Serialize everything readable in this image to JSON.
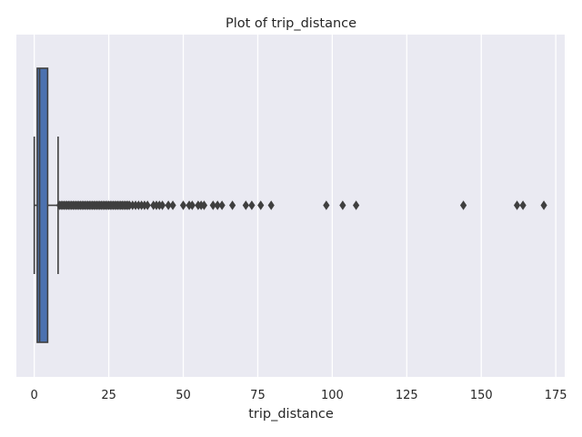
{
  "chart_data": {
    "type": "box",
    "title": "Plot of trip_distance",
    "xlabel": "trip_distance",
    "ylabel": "",
    "orientation": "horizontal",
    "xlim": [
      -6,
      178
    ],
    "xticks": [
      0,
      25,
      50,
      75,
      100,
      125,
      150,
      175
    ],
    "xtick_labels": [
      "0",
      "25",
      "50",
      "75",
      "100",
      "125",
      "150",
      "175"
    ],
    "grid": true,
    "box": {
      "whisker_low": 0,
      "q1": 1.0,
      "median": 1.8,
      "q3": 4.5,
      "whisker_high": 8.0
    },
    "outliers": [
      8.5,
      9,
      9.5,
      10,
      10.5,
      11,
      11.5,
      12,
      12.5,
      13,
      13.5,
      14,
      14.5,
      15,
      15.5,
      16,
      16.5,
      17,
      17.5,
      18,
      18.5,
      19,
      19.5,
      20,
      20.5,
      21,
      21.5,
      22,
      22.5,
      23,
      23.5,
      24,
      24.5,
      25,
      25.5,
      26,
      26.5,
      27,
      27.5,
      28,
      28.5,
      29,
      29.5,
      30,
      30.5,
      31,
      31.5,
      32,
      33,
      34,
      35,
      36,
      37,
      38,
      40,
      41,
      42,
      43,
      45,
      46.5,
      50,
      52,
      53,
      55,
      56,
      57,
      60,
      61.5,
      63,
      66.5,
      71,
      73,
      76,
      79.5,
      98,
      103.5,
      108,
      144,
      162,
      164,
      171
    ],
    "colors": {
      "background": "#EAEAF2",
      "grid": "#FFFFFF",
      "box_fill": "#4C72B0",
      "line": "#3F3F3F"
    }
  }
}
